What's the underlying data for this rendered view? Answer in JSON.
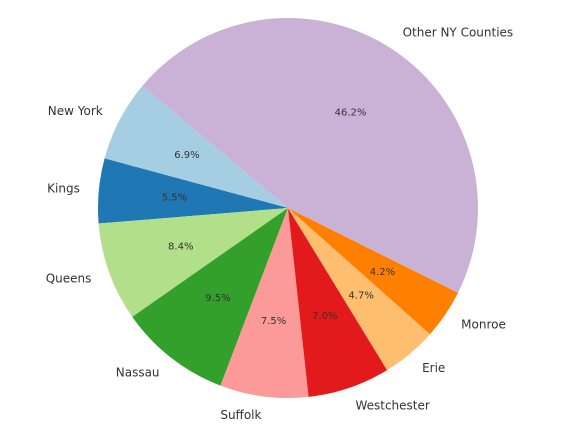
{
  "chart_data": {
    "type": "pie",
    "categories": [
      "New York",
      "Kings",
      "Queens",
      "Nassau",
      "Suffolk",
      "Westchester",
      "Erie",
      "Monroe",
      "Other NY Counties"
    ],
    "values": [
      6.9,
      5.5,
      8.4,
      9.5,
      7.5,
      7.0,
      4.7,
      4.2,
      46.2
    ],
    "value_labels": [
      "6.9%",
      "5.5%",
      "8.4%",
      "9.5%",
      "7.5%",
      "7.0%",
      "4.7%",
      "4.2%",
      "46.2%"
    ],
    "colors": [
      "#a6cee3",
      "#1f78b4",
      "#b2df8a",
      "#33a02c",
      "#fb9a99",
      "#e31a1c",
      "#fdbf6f",
      "#ff7f00",
      "#cab2d6"
    ]
  }
}
